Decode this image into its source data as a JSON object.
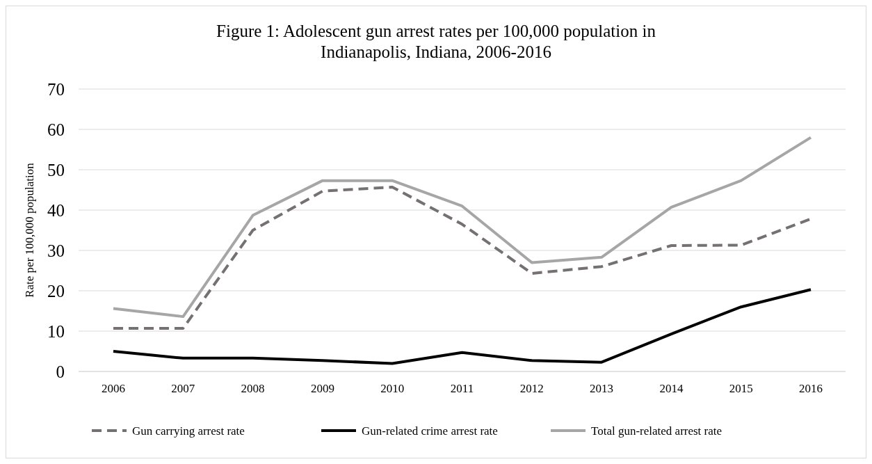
{
  "chart_data": {
    "type": "line",
    "title": "Figure  1: Adolescent  gun  arrest rates per 100,000 population  in Indianapolis,  Indiana,  2006-2016",
    "ylabel": "Rate per 100,000 population",
    "categories": [
      "2006",
      "2007",
      "2008",
      "2009",
      "2010",
      "2011",
      "2012",
      "2013",
      "2014",
      "2015",
      "2016"
    ],
    "series": [
      {
        "name": "Gun carrying arrest rate",
        "color": "#767171",
        "line_style": "dashed",
        "values": [
          10.7,
          10.7,
          35,
          44.7,
          45.7,
          36.5,
          24.3,
          26,
          31.2,
          31.3,
          37.8
        ]
      },
      {
        "name": "Gun-related crime arrest rate",
        "color": "#000000",
        "line_style": "solid",
        "values": [
          5,
          3.3,
          3.3,
          2.7,
          2,
          4.7,
          2.7,
          2.3,
          9.3,
          16,
          20.3
        ]
      },
      {
        "name": "Total gun-related arrest rate",
        "color": "#a6a6a6",
        "line_style": "solid",
        "values": [
          15.6,
          13.6,
          38.7,
          47.3,
          47.3,
          41,
          27,
          28.3,
          40.7,
          47.3,
          58
        ]
      }
    ],
    "ylim": [
      0,
      70
    ],
    "yticks": [
      0,
      10,
      20,
      30,
      40,
      50,
      60,
      70
    ],
    "grid": "y",
    "legend": "bottom",
    "marker": "none"
  }
}
